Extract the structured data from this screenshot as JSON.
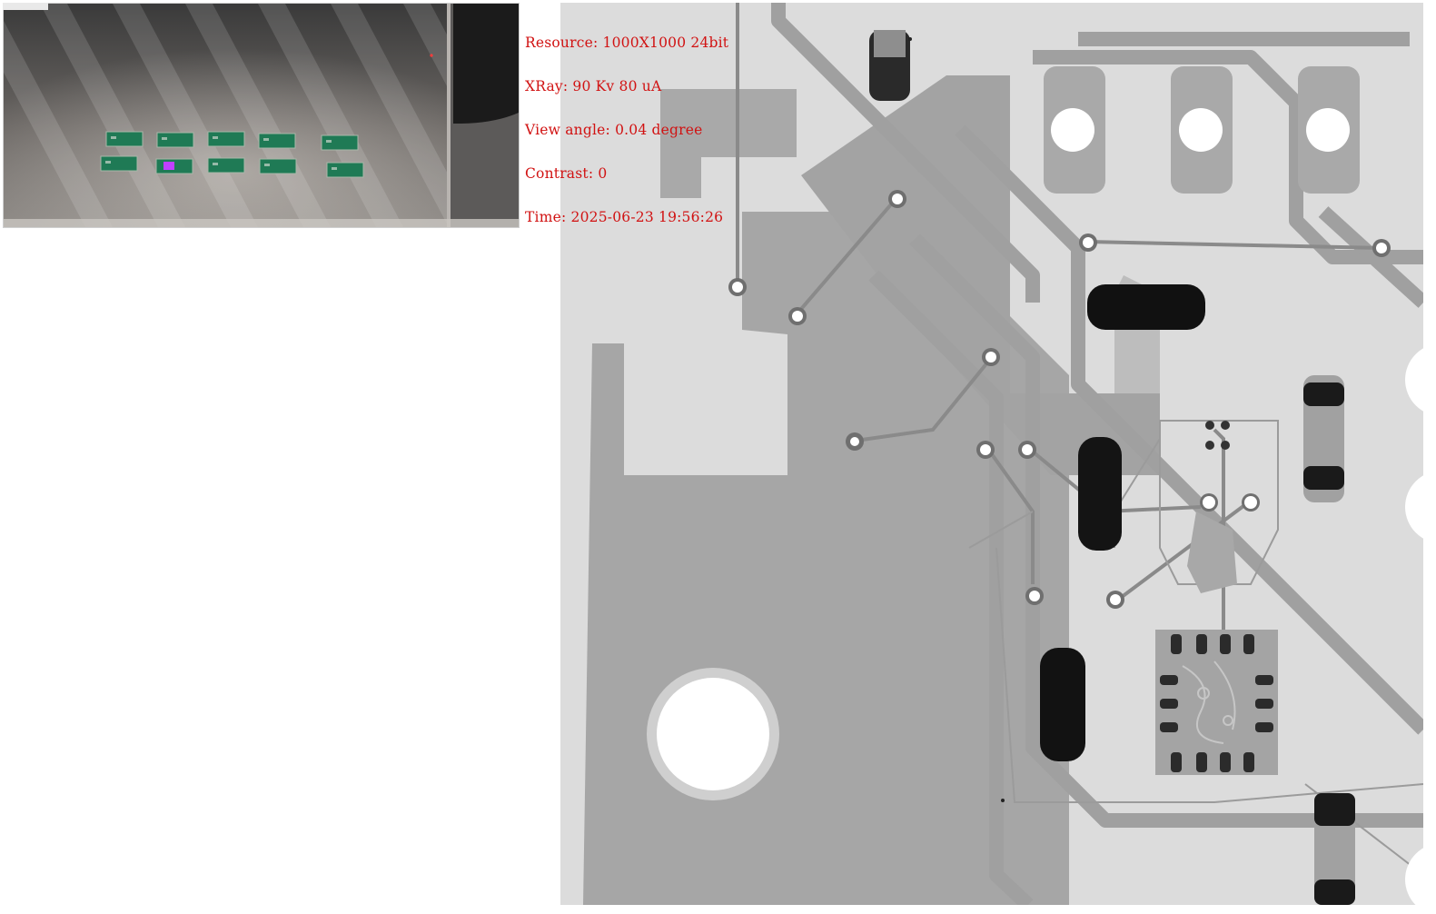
{
  "overview": {
    "selected_board_index": 6,
    "board_count": 10
  },
  "xray_info": {
    "resource": "Resource: 1000X1000 24bit",
    "xray": "XRay: 90 Kv 80 uA",
    "view_angle": "View angle: 0.04 degree",
    "contrast": "Contrast: 0",
    "time": "Time: 2025-06-23 19:56:26"
  },
  "colors": {
    "overlay_text": "#d11212",
    "selected_board": "#c040ff",
    "board_green": "#1f7a55"
  }
}
